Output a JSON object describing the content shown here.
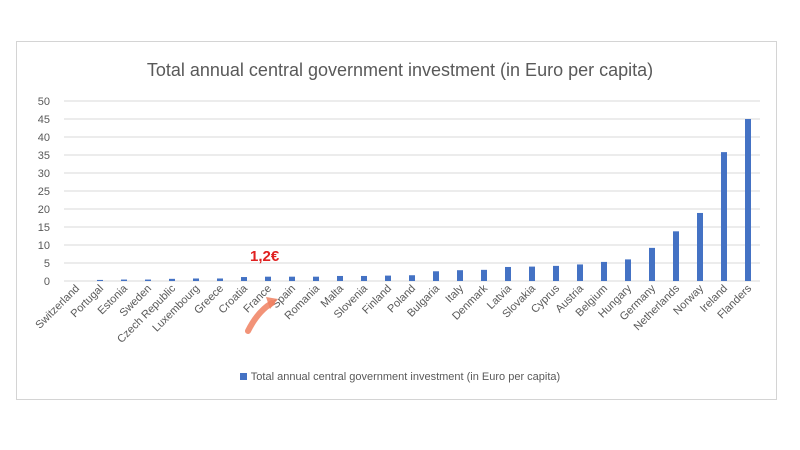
{
  "chart_data": {
    "type": "bar",
    "title": "Total annual central government investment (in Euro per capita)",
    "xlabel": "",
    "ylabel": "",
    "ylim": [
      0,
      50
    ],
    "yticks": [
      0,
      5,
      10,
      15,
      20,
      25,
      30,
      35,
      40,
      45,
      50
    ],
    "grid": true,
    "legend_position": "bottom",
    "categories": [
      "Switzerland",
      "Portugal",
      "Estonia",
      "Sweden",
      "Czech Republic",
      "Luxembourg",
      "Greece",
      "Croatia",
      "France",
      "Spain",
      "Romania",
      "Malta",
      "Slovenia",
      "Finland",
      "Poland",
      "Bulgaria",
      "Italy",
      "Denmark",
      "Latvia",
      "Slovakia",
      "Cyprus",
      "Austria",
      "Belgium",
      "Hungary",
      "Germany",
      "Netherlands",
      "Norway",
      "Ireland",
      "Flanders"
    ],
    "series": [
      {
        "name": "Total annual central government investment (in Euro per capita)",
        "color": "#4472c4",
        "values": [
          0,
          0.3,
          0.4,
          0.4,
          0.6,
          0.7,
          0.7,
          1.1,
          1.2,
          1.2,
          1.2,
          1.4,
          1.4,
          1.5,
          1.6,
          2.7,
          3.0,
          3.1,
          3.9,
          4.0,
          4.2,
          4.6,
          5.3,
          6.0,
          9.2,
          13.8,
          18.9,
          35.8,
          45.0
        ]
      }
    ],
    "annotations": [
      {
        "text": "1,2€",
        "category": "France",
        "color": "#e02020"
      }
    ]
  }
}
